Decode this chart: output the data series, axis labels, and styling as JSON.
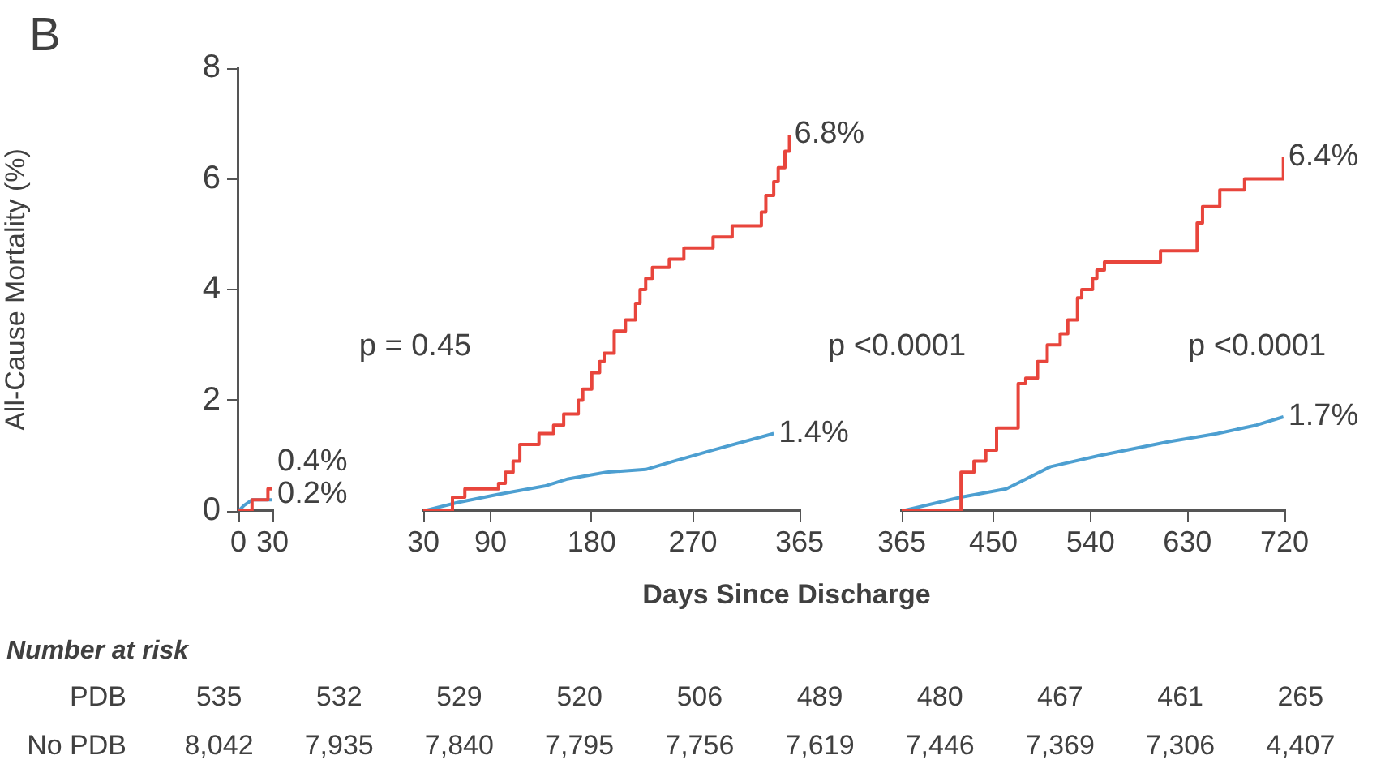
{
  "chart_data": [
    {
      "type": "line",
      "title": "B",
      "ylabel": "All-Cause Mortality (%)",
      "xlim": [
        0,
        30
      ],
      "xticks": [
        0,
        30
      ],
      "ylim": [
        0,
        8
      ],
      "yticks": [
        0,
        2,
        4,
        6,
        8
      ],
      "grid": false,
      "marker": "none",
      "series": [
        {
          "type": "step",
          "color": "#e8453c",
          "x": [
            0,
            12,
            26,
            30
          ],
          "values": [
            0,
            0.2,
            0.4,
            0.4
          ]
        },
        {
          "type": "line",
          "color": "#4d9fd1",
          "x": [
            0,
            5,
            12,
            30
          ],
          "values": [
            0,
            0.1,
            0.2,
            0.2
          ]
        }
      ],
      "annotations": [
        {
          "text": "0.4%",
          "x": 30,
          "y": 0.4
        },
        {
          "text": "0.2%",
          "x": 30,
          "y": 0.2
        },
        "p = 0.45"
      ]
    },
    {
      "type": "line",
      "xlabel": "Days Since Discharge",
      "xlim": [
        30,
        365
      ],
      "xticks": [
        30,
        90,
        180,
        270,
        365
      ],
      "ylim": [
        0,
        8
      ],
      "yticks": [
        0,
        2,
        4,
        6,
        8
      ],
      "tick_labels": "x",
      "grid": false,
      "marker": "none",
      "series": [
        {
          "type": "step",
          "color": "#e8453c",
          "x": [
            30,
            56,
            67,
            97,
            103,
            110,
            116,
            133,
            146,
            155,
            168,
            172,
            180,
            187,
            191,
            200,
            210,
            219,
            223,
            228,
            234,
            249,
            262,
            288,
            305,
            331,
            335,
            342,
            346,
            352,
            356
          ],
          "values": [
            0,
            0.25,
            0.4,
            0.5,
            0.7,
            0.9,
            1.2,
            1.4,
            1.55,
            1.75,
            2.0,
            2.2,
            2.5,
            2.7,
            2.85,
            3.25,
            3.45,
            3.75,
            4.0,
            4.2,
            4.4,
            4.55,
            4.75,
            4.95,
            5.15,
            5.4,
            5.7,
            5.95,
            6.2,
            6.5,
            6.8
          ]
        },
        {
          "type": "line",
          "color": "#4d9fd1",
          "x": [
            30,
            60,
            97,
            138,
            159,
            193,
            228,
            253,
            288,
            342
          ],
          "values": [
            0,
            0.15,
            0.3,
            0.45,
            0.58,
            0.7,
            0.75,
            0.9,
            1.1,
            1.4
          ]
        }
      ],
      "annotations": [
        {
          "text": "6.8%",
          "x": 356,
          "y": 6.8
        },
        {
          "text": "1.4%",
          "x": 342,
          "y": 1.4
        },
        "p <0.0001"
      ]
    },
    {
      "type": "line",
      "xlim": [
        365,
        720
      ],
      "xticks": [
        365,
        450,
        540,
        630,
        720
      ],
      "ylim": [
        0,
        8
      ],
      "yticks": [
        0,
        2,
        4,
        6,
        8
      ],
      "tick_labels": "x",
      "grid": false,
      "marker": "none",
      "series": [
        {
          "type": "step",
          "color": "#e8453c",
          "x": [
            365,
            420,
            432,
            443,
            453,
            473,
            480,
            491,
            500,
            512,
            519,
            528,
            532,
            542,
            546,
            553,
            605,
            639,
            644,
            660,
            683,
            719
          ],
          "values": [
            0,
            0.7,
            0.9,
            1.1,
            1.5,
            2.3,
            2.4,
            2.7,
            3.0,
            3.2,
            3.45,
            3.85,
            4.0,
            4.2,
            4.35,
            4.5,
            4.7,
            5.2,
            5.5,
            5.8,
            6.0,
            6.4
          ]
        },
        {
          "type": "line",
          "color": "#4d9fd1",
          "x": [
            365,
            420,
            462,
            503,
            548,
            612,
            658,
            694,
            719
          ],
          "values": [
            0,
            0.25,
            0.4,
            0.8,
            1.0,
            1.25,
            1.4,
            1.55,
            1.7
          ]
        }
      ],
      "annotations": [
        {
          "text": "6.4%",
          "x": 719,
          "y": 6.4
        },
        {
          "text": "1.7%",
          "x": 719,
          "y": 1.7
        },
        "p <0.0001"
      ]
    },
    {
      "type": "other",
      "title": "Number at risk",
      "annotations": [
        "PDB",
        "535",
        "532",
        "529",
        "520",
        "506",
        "489",
        "480",
        "467",
        "461",
        "265",
        "No PDB",
        "8,042",
        "7,935",
        "7,840",
        "7,795",
        "7,756",
        "7,619",
        "7,446",
        "7,369",
        "7,306",
        "4,407"
      ]
    }
  ]
}
